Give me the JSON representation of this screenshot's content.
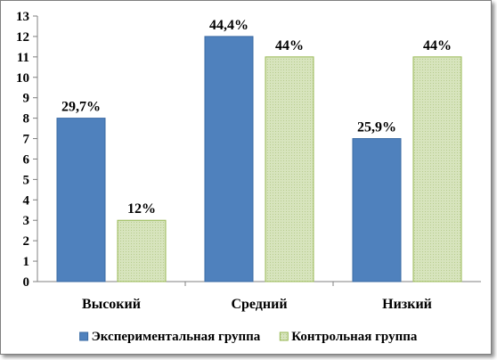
{
  "chart_data": {
    "type": "bar",
    "categories": [
      "Высокий",
      "Средний",
      "Низкий"
    ],
    "ylim": [
      0,
      13
    ],
    "ytick_step": 1,
    "grid": false,
    "legend_position": "bottom",
    "series": [
      {
        "name": "Экспериментальная группа",
        "values": [
          8,
          12,
          7
        ],
        "labels": [
          "29,7%",
          "44,4%",
          "25,9%"
        ],
        "color": "#4f81bd"
      },
      {
        "name": "Контрольная группа",
        "values": [
          3,
          11,
          11
        ],
        "labels": [
          "12%",
          "44%",
          "44%"
        ],
        "color": "#d7e4bd"
      }
    ]
  }
}
